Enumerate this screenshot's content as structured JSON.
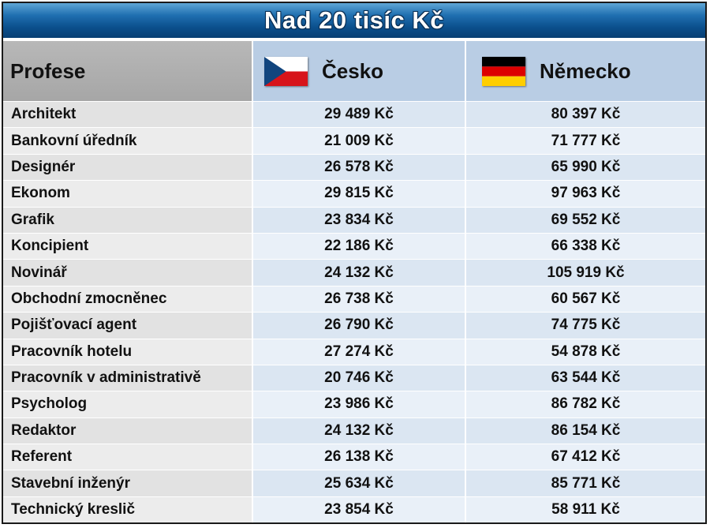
{
  "chart_data": {
    "type": "table",
    "title": "Nad 20 tisíc Kč",
    "columns": [
      "Profese",
      "Česko",
      "Německo"
    ],
    "rows": [
      {
        "profese": "Architekt",
        "cesko": "29 489 Kč",
        "nemecko": "80 397 Kč"
      },
      {
        "profese": "Bankovní úředník",
        "cesko": "21 009 Kč",
        "nemecko": "71 777 Kč"
      },
      {
        "profese": "Designér",
        "cesko": "26 578 Kč",
        "nemecko": "65 990 Kč"
      },
      {
        "profese": "Ekonom",
        "cesko": "29 815 Kč",
        "nemecko": "97 963 Kč"
      },
      {
        "profese": "Grafik",
        "cesko": "23 834 Kč",
        "nemecko": "69 552 Kč"
      },
      {
        "profese": "Koncipient",
        "cesko": "22 186 Kč",
        "nemecko": "66 338 Kč"
      },
      {
        "profese": "Novinář",
        "cesko": "24 132 Kč",
        "nemecko": "105 919 Kč"
      },
      {
        "profese": "Obchodní zmocněnec",
        "cesko": "26 738 Kč",
        "nemecko": "60 567 Kč"
      },
      {
        "profese": "Pojišťovací agent",
        "cesko": "26 790 Kč",
        "nemecko": "74 775 Kč"
      },
      {
        "profese": "Pracovník hotelu",
        "cesko": "27 274 Kč",
        "nemecko": "54 878 Kč"
      },
      {
        "profese": "Pracovník v administrativě",
        "cesko": "20 746 Kč",
        "nemecko": "63 544 Kč"
      },
      {
        "profese": "Psycholog",
        "cesko": "23 986 Kč",
        "nemecko": "86 782 Kč"
      },
      {
        "profese": "Redaktor",
        "cesko": "24 132 Kč",
        "nemecko": "86 154 Kč"
      },
      {
        "profese": "Referent",
        "cesko": "26 138 Kč",
        "nemecko": "67 412 Kč"
      },
      {
        "profese": "Stavební inženýr",
        "cesko": "25 634 Kč",
        "nemecko": "85 771 Kč"
      },
      {
        "profese": "Technický kreslič",
        "cesko": "23 854 Kč",
        "nemecko": "58 911 Kč"
      }
    ]
  },
  "icons": {
    "cz_flag": "czech-flag-icon",
    "de_flag": "german-flag-icon"
  },
  "colors": {
    "banner": "#0b4f8c",
    "header_profese": "#a6a6a6",
    "header_country": "#b9cde4",
    "row_value": "#dbe6f2"
  }
}
